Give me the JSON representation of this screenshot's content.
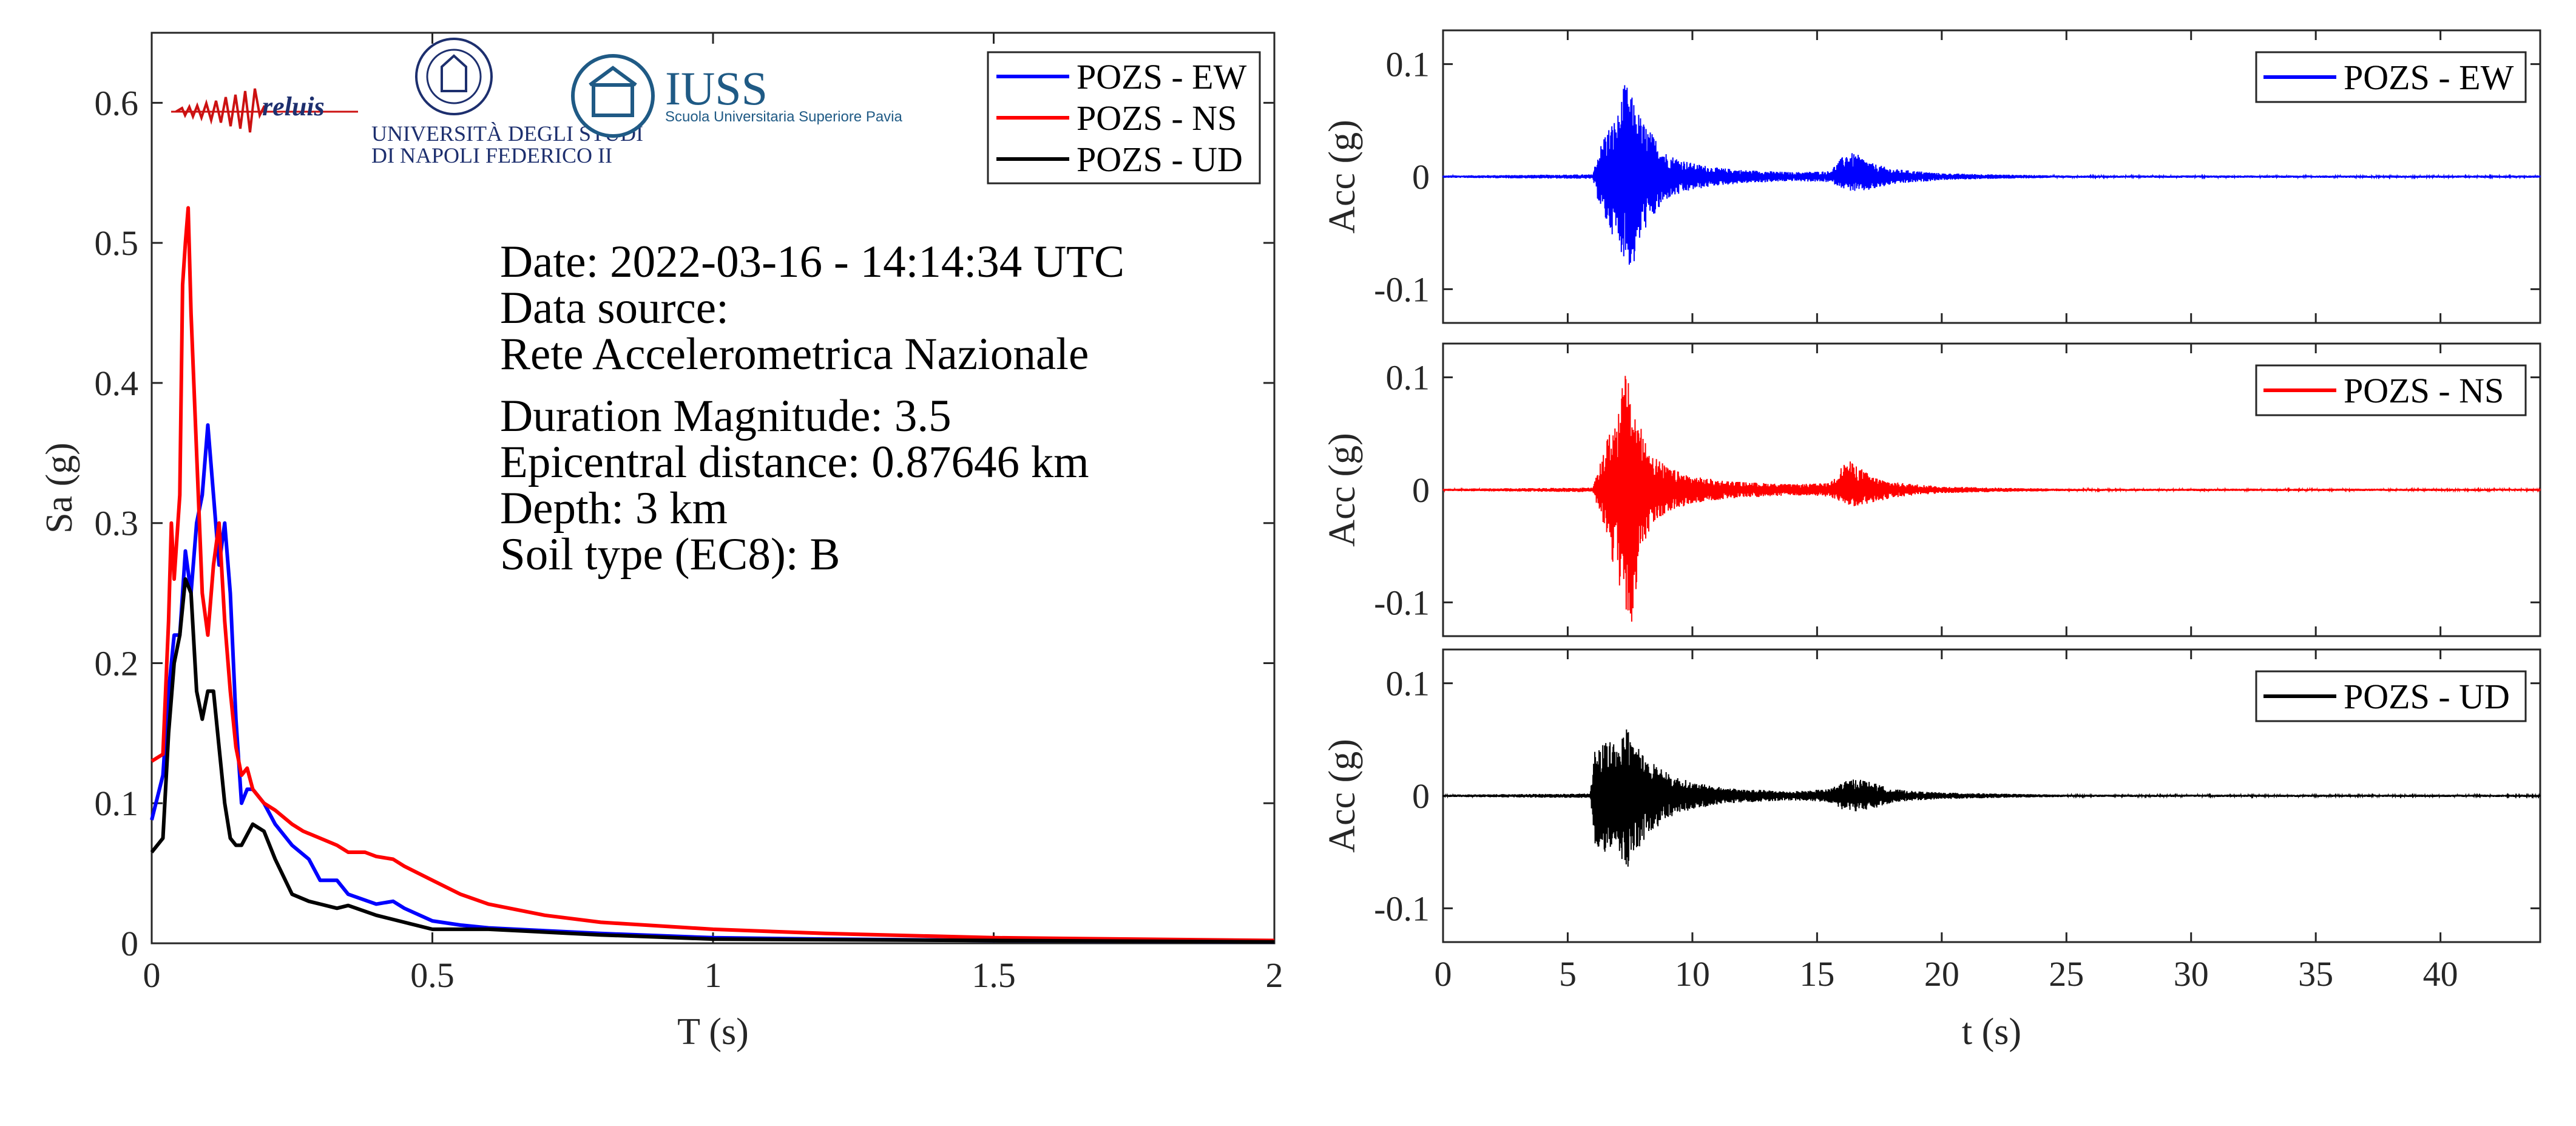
{
  "chart_data": [
    {
      "type": "line",
      "id": "spectrum",
      "xlabel": "T (s)",
      "ylabel": "Sa (g)",
      "xlim": [
        0,
        2
      ],
      "ylim": [
        0,
        0.65
      ],
      "xticks": [
        0,
        0.5,
        1,
        1.5,
        2
      ],
      "xtick_labels": [
        "0",
        "0.5",
        "1",
        "1.5",
        "2"
      ],
      "yticks": [
        0,
        0.1,
        0.2,
        0.3,
        0.4,
        0.5,
        0.6
      ],
      "ytick_labels": [
        "0",
        "0.1",
        "0.2",
        "0.3",
        "0.4",
        "0.5",
        "0.6"
      ],
      "grid": false,
      "legend_position": "top-right",
      "series": [
        {
          "name": "POZS - EW",
          "color": "#0000ff",
          "x": [
            0,
            0.02,
            0.03,
            0.04,
            0.05,
            0.06,
            0.07,
            0.08,
            0.09,
            0.1,
            0.11,
            0.12,
            0.13,
            0.14,
            0.15,
            0.16,
            0.17,
            0.18,
            0.2,
            0.22,
            0.25,
            0.28,
            0.3,
            0.33,
            0.35,
            0.4,
            0.43,
            0.45,
            0.5,
            0.55,
            0.6,
            0.7,
            0.8,
            1.0,
            1.2,
            1.5,
            2.0
          ],
          "y": [
            0.088,
            0.12,
            0.18,
            0.22,
            0.22,
            0.28,
            0.25,
            0.3,
            0.32,
            0.37,
            0.32,
            0.27,
            0.3,
            0.25,
            0.16,
            0.1,
            0.11,
            0.11,
            0.1,
            0.085,
            0.07,
            0.06,
            0.045,
            0.045,
            0.035,
            0.028,
            0.03,
            0.025,
            0.016,
            0.013,
            0.011,
            0.009,
            0.007,
            0.004,
            0.003,
            0.002,
            0.001
          ]
        },
        {
          "name": "POZS - NS",
          "color": "#ff0000",
          "x": [
            0,
            0.02,
            0.03,
            0.035,
            0.04,
            0.05,
            0.055,
            0.06,
            0.065,
            0.07,
            0.08,
            0.09,
            0.1,
            0.11,
            0.12,
            0.13,
            0.14,
            0.15,
            0.16,
            0.17,
            0.18,
            0.2,
            0.22,
            0.25,
            0.27,
            0.3,
            0.33,
            0.35,
            0.38,
            0.4,
            0.43,
            0.45,
            0.5,
            0.55,
            0.6,
            0.7,
            0.8,
            1.0,
            1.2,
            1.5,
            2.0
          ],
          "y": [
            0.13,
            0.135,
            0.23,
            0.3,
            0.26,
            0.32,
            0.47,
            0.5,
            0.525,
            0.45,
            0.35,
            0.25,
            0.22,
            0.27,
            0.3,
            0.23,
            0.18,
            0.14,
            0.12,
            0.125,
            0.11,
            0.1,
            0.095,
            0.085,
            0.08,
            0.075,
            0.07,
            0.065,
            0.065,
            0.062,
            0.06,
            0.055,
            0.045,
            0.035,
            0.028,
            0.02,
            0.015,
            0.01,
            0.007,
            0.004,
            0.002
          ]
        },
        {
          "name": "POZS - UD",
          "color": "#000000",
          "x": [
            0,
            0.02,
            0.03,
            0.04,
            0.05,
            0.06,
            0.07,
            0.08,
            0.09,
            0.1,
            0.11,
            0.12,
            0.13,
            0.14,
            0.15,
            0.16,
            0.18,
            0.2,
            0.22,
            0.25,
            0.28,
            0.3,
            0.33,
            0.35,
            0.4,
            0.45,
            0.5,
            0.6,
            0.8,
            1.0,
            1.5,
            2.0
          ],
          "y": [
            0.065,
            0.075,
            0.15,
            0.2,
            0.22,
            0.26,
            0.25,
            0.18,
            0.16,
            0.18,
            0.18,
            0.14,
            0.1,
            0.075,
            0.07,
            0.07,
            0.085,
            0.08,
            0.06,
            0.035,
            0.03,
            0.028,
            0.025,
            0.027,
            0.02,
            0.015,
            0.01,
            0.01,
            0.006,
            0.003,
            0.002,
            0.001
          ]
        }
      ]
    },
    {
      "type": "line",
      "id": "acc-ew",
      "ylabel": "Acc (g)",
      "xlim": [
        0,
        44
      ],
      "ylim": [
        -0.13,
        0.13
      ],
      "yticks": [
        -0.1,
        0,
        0.1
      ],
      "ytick_labels": [
        "-0.1",
        "0",
        "0.1"
      ],
      "legend_position": "top-right",
      "series": [
        {
          "name": "POZS - EW",
          "color": "#0000ff",
          "envelope": {
            "t": [
              0,
              6.0,
              6.2,
              6.5,
              7.0,
              7.3,
              7.6,
              8.0,
              8.5,
              9.0,
              10.0,
              11.0,
              12.0,
              14.0,
              15.5,
              16.2,
              16.6,
              17.2,
              18.0,
              19.0,
              20.0,
              22.0,
              25.0,
              44.0
            ],
            "pos": [
              0.001,
              0.002,
              0.02,
              0.04,
              0.055,
              0.085,
              0.07,
              0.05,
              0.035,
              0.02,
              0.012,
              0.008,
              0.006,
              0.004,
              0.005,
              0.022,
              0.02,
              0.012,
              0.007,
              0.005,
              0.003,
              0.002,
              0.001,
              0.001
            ],
            "neg": [
              0.001,
              0.002,
              0.02,
              0.04,
              0.06,
              0.075,
              0.085,
              0.05,
              0.035,
              0.02,
              0.012,
              0.008,
              0.006,
              0.004,
              0.005,
              0.012,
              0.014,
              0.012,
              0.007,
              0.005,
              0.003,
              0.002,
              0.001,
              0.001
            ]
          }
        }
      ]
    },
    {
      "type": "line",
      "id": "acc-ns",
      "ylabel": "Acc (g)",
      "xlim": [
        0,
        44
      ],
      "ylim": [
        -0.13,
        0.13
      ],
      "yticks": [
        -0.1,
        0,
        0.1
      ],
      "ytick_labels": [
        "-0.1",
        "0",
        "0.1"
      ],
      "legend_position": "top-right",
      "series": [
        {
          "name": "POZS - NS",
          "color": "#ff0000",
          "envelope": {
            "t": [
              0,
              6.0,
              6.2,
              6.5,
              7.0,
              7.3,
              7.5,
              8.0,
              8.5,
              9.0,
              10.0,
              11.0,
              12.0,
              14.0,
              15.5,
              16.2,
              16.6,
              17.2,
              18.0,
              19.0,
              20.0,
              22.0,
              25.0,
              44.0
            ],
            "pos": [
              0.001,
              0.002,
              0.015,
              0.04,
              0.07,
              0.107,
              0.09,
              0.05,
              0.03,
              0.02,
              0.012,
              0.009,
              0.007,
              0.005,
              0.006,
              0.027,
              0.022,
              0.012,
              0.007,
              0.005,
              0.003,
              0.002,
              0.001,
              0.001
            ],
            "neg": [
              0.001,
              0.002,
              0.015,
              0.04,
              0.08,
              0.11,
              0.128,
              0.05,
              0.03,
              0.02,
              0.012,
              0.009,
              0.007,
              0.005,
              0.006,
              0.014,
              0.015,
              0.012,
              0.007,
              0.005,
              0.003,
              0.002,
              0.001,
              0.001
            ]
          }
        }
      ]
    },
    {
      "type": "line",
      "id": "acc-ud",
      "ylabel": "Acc (g)",
      "xlabel": "t (s)",
      "xlim": [
        0,
        44
      ],
      "ylim": [
        -0.13,
        0.13
      ],
      "xticks": [
        0,
        5,
        10,
        15,
        20,
        25,
        30,
        35,
        40
      ],
      "xtick_labels": [
        "0",
        "5",
        "10",
        "15",
        "20",
        "25",
        "30",
        "35",
        "40"
      ],
      "yticks": [
        -0.1,
        0,
        0.1
      ],
      "ytick_labels": [
        "-0.1",
        "0",
        "0.1"
      ],
      "legend_position": "top-right",
      "series": [
        {
          "name": "POZS - UD",
          "color": "#000000",
          "envelope": {
            "t": [
              0,
              5.9,
              6.1,
              6.5,
              7.0,
              7.4,
              7.8,
              8.2,
              8.6,
              9.0,
              10.0,
              11.0,
              12.0,
              14.0,
              15.5,
              16.0,
              16.6,
              17.2,
              18.0,
              19.0,
              20.0,
              22.0,
              25.0,
              44.0
            ],
            "pos": [
              0.001,
              0.002,
              0.045,
              0.05,
              0.05,
              0.06,
              0.045,
              0.035,
              0.03,
              0.02,
              0.012,
              0.008,
              0.006,
              0.004,
              0.006,
              0.012,
              0.016,
              0.012,
              0.006,
              0.004,
              0.003,
              0.002,
              0.001,
              0.001
            ],
            "neg": [
              0.001,
              0.002,
              0.045,
              0.05,
              0.055,
              0.065,
              0.05,
              0.035,
              0.03,
              0.02,
              0.012,
              0.008,
              0.006,
              0.004,
              0.006,
              0.012,
              0.014,
              0.012,
              0.006,
              0.004,
              0.003,
              0.002,
              0.001,
              0.001
            ]
          }
        }
      ]
    }
  ],
  "info": {
    "date": "Date: 2022-03-16 - 14:14:34 UTC",
    "source_label": "Data source:",
    "source_name": "Rete Accelerometrica Nazionale",
    "magnitude": "Duration Magnitude: 3.5",
    "distance": "Epicentral distance: 0.87646 km",
    "depth": "Depth: 3 km",
    "soil": "Soil type (EC8): B"
  },
  "logos": {
    "reluis": "reluis",
    "unina_line1": "UNIVERSITÀ DEGLI STUDI",
    "unina_line2": "DI NAPOLI FEDERICO II",
    "iuss": "IUSS",
    "iuss_sub": "Scuola Universitaria Superiore Pavia"
  }
}
